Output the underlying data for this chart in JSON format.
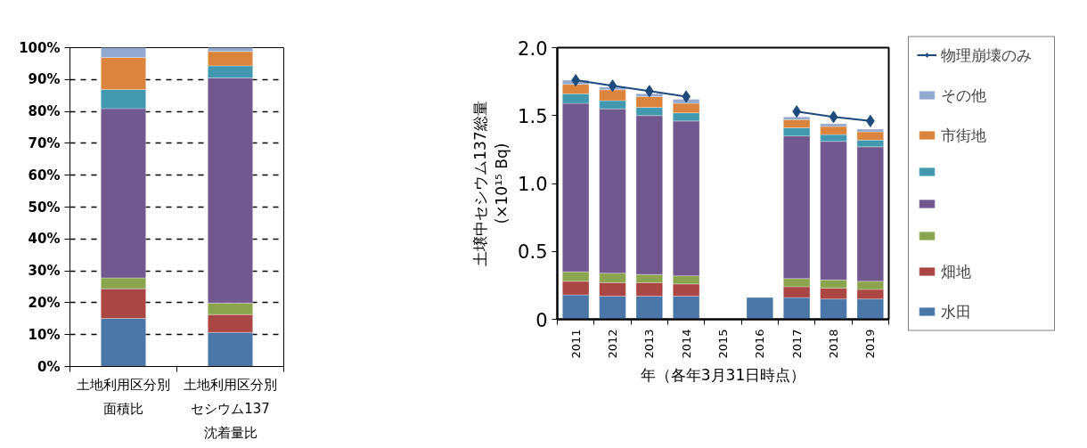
{
  "chart_data": [
    {
      "type": "bar",
      "stacked": true,
      "categories": [
        "土地利用区分別面積比",
        "土地利用区分別セシウム137沈着量比"
      ],
      "ylim": [
        0,
        100
      ],
      "yticks": [
        {
          "value": 0,
          "label": "0%"
        },
        {
          "value": 10,
          "label": "10%"
        },
        {
          "value": 20,
          "label": "20%"
        },
        {
          "value": 30,
          "label": "30%"
        },
        {
          "value": 40,
          "label": "40%"
        },
        {
          "value": 50,
          "label": "50%"
        },
        {
          "value": 60,
          "label": "60%"
        },
        {
          "value": 70,
          "label": "70%"
        },
        {
          "value": 80,
          "label": "80%"
        },
        {
          "value": 90,
          "label": "90%"
        },
        {
          "value": 100,
          "label": "100%"
        }
      ],
      "grid": "y",
      "series": [
        {
          "color": "#4a76a8",
          "values": [
            15.1,
            10.7
          ]
        },
        {
          "color": "#aa4643",
          "values": [
            9.3,
            5.6
          ]
        },
        {
          "color": "#8ba54f",
          "values": [
            3.4,
            3.6
          ]
        },
        {
          "color": "#71588f",
          "values": [
            53.1,
            70.6
          ]
        },
        {
          "color": "#4198af",
          "values": [
            6.0,
            3.8
          ]
        },
        {
          "color": "#db843d",
          "values": [
            10.0,
            4.5
          ]
        },
        {
          "color": "#93a9cf",
          "values": [
            3.1,
            1.2
          ]
        }
      ]
    },
    {
      "type": "bar",
      "stacked": true,
      "categories": [
        "2011",
        "2012",
        "2013",
        "2014",
        "2015",
        "2016",
        "2017",
        "2018",
        "2019"
      ],
      "xlabel": "年（各年3月31日時点）",
      "ylabel": "土壌中セシウム137総量\n(×10¹⁵ Bq)",
      "ylim": [
        0,
        2
      ],
      "yticks": [
        0,
        0.5,
        {
          "value": 1,
          "label": "1.0"
        },
        1.5,
        {
          "value": 2,
          "label": "2.0"
        }
      ],
      "grid": false,
      "legend": "right",
      "series": [
        {
          "name": "水田",
          "color": "#4a76a8",
          "values": [
            0.18,
            0.17,
            0.17,
            0.17,
            null,
            0.16,
            0.16,
            0.15,
            0.15
          ]
        },
        {
          "name": "畑地",
          "color": "#aa4643",
          "values": [
            0.1,
            0.1,
            0.1,
            0.09,
            null,
            null,
            0.08,
            0.08,
            0.07
          ]
        },
        {
          "color": "#8ba54f",
          "values": [
            0.07,
            0.07,
            0.06,
            0.06,
            null,
            null,
            0.06,
            0.06,
            0.06
          ]
        },
        {
          "color": "#71588f",
          "values": [
            1.24,
            1.21,
            1.17,
            1.14,
            null,
            null,
            1.05,
            1.02,
            0.99
          ]
        },
        {
          "color": "#4198af",
          "values": [
            0.07,
            0.06,
            0.06,
            0.06,
            null,
            null,
            0.06,
            0.05,
            0.05
          ]
        },
        {
          "name": "市街地",
          "color": "#db843d",
          "values": [
            0.07,
            0.08,
            0.08,
            0.07,
            null,
            null,
            0.06,
            0.06,
            0.06
          ]
        },
        {
          "name": "その他",
          "color": "#93a9cf",
          "values": [
            0.03,
            0.02,
            0.02,
            0.03,
            null,
            null,
            0.02,
            0.02,
            0.02
          ]
        },
        {
          "name": "物理崩壊のみ",
          "type": "line",
          "marker": "diamond",
          "color": "#1f4a7e",
          "values": [
            1.76,
            1.72,
            1.68,
            1.64,
            null,
            null,
            1.53,
            1.49,
            1.46
          ]
        }
      ]
    }
  ]
}
